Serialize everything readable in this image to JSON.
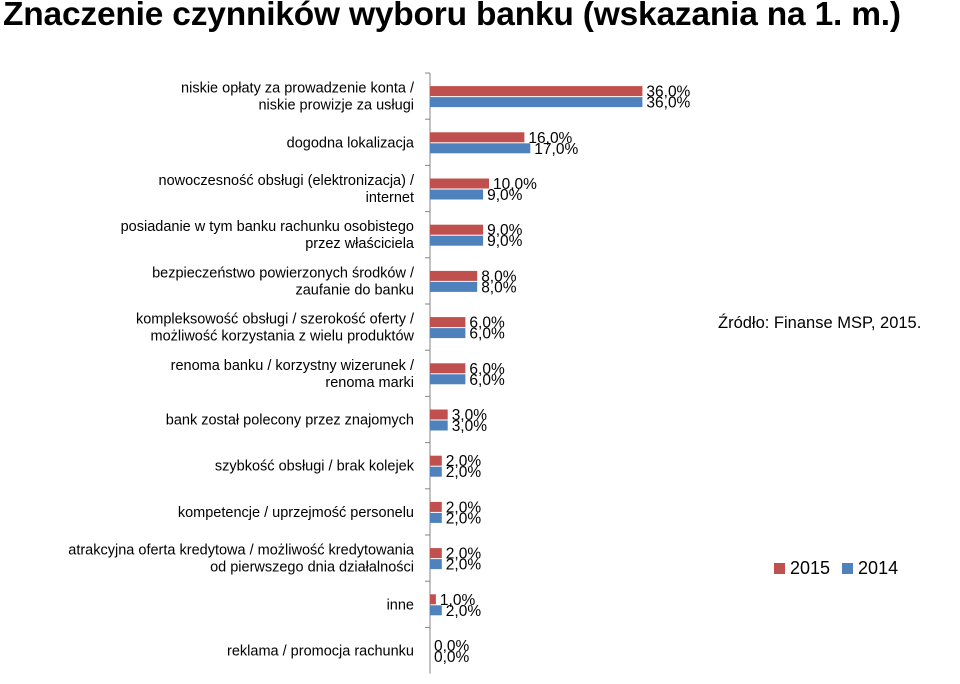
{
  "chart_data": {
    "type": "bar",
    "orientation": "horizontal",
    "title": "Znaczenie czynników wyboru banku (wskazania na 1. m.)",
    "categories": [
      [
        "niskie opłaty za prowadzenie konta /",
        "niskie prowizje za usługi"
      ],
      [
        "dogodna lokalizacja"
      ],
      [
        "nowoczesność obsługi (elektronizacja) /",
        "internet"
      ],
      [
        "posiadanie w tym banku rachunku osobistego",
        "przez właściciela"
      ],
      [
        "bezpieczeństwo powierzonych środków /",
        "zaufanie do banku"
      ],
      [
        "kompleksowość obsługi  / szerokość oferty /",
        "możliwość korzystania z wielu produktów"
      ],
      [
        "renoma banku / korzystny wizerunek /",
        "renoma marki"
      ],
      [
        "bank został polecony przez znajomych"
      ],
      [
        "szybkość obsługi / brak kolejek"
      ],
      [
        "kompetencje / uprzejmość personelu"
      ],
      [
        "atrakcyjna oferta kredytowa / możliwość kredytowania",
        "od pierwszego dnia działalności"
      ],
      [
        "inne"
      ],
      [
        "reklama / promocja rachunku"
      ]
    ],
    "series": [
      {
        "name": "2015",
        "color": "#c0504d",
        "values": [
          36,
          16,
          10,
          9,
          8,
          6,
          6,
          3,
          2,
          2,
          2,
          1,
          0
        ],
        "labels": [
          "36,0%",
          "16,0%",
          "10,0%",
          "9,0%",
          "8,0%",
          "6,0%",
          "6,0%",
          "3,0%",
          "2,0%",
          "2,0%",
          "2,0%",
          "1,0%",
          "0,0%"
        ]
      },
      {
        "name": "2014",
        "color": "#4f81bd",
        "values": [
          36,
          17,
          9,
          9,
          8,
          6,
          6,
          3,
          2,
          2,
          2,
          2,
          0
        ],
        "labels": [
          "36,0%",
          "17,0%",
          "9,0%",
          "9,0%",
          "8,0%",
          "6,0%",
          "6,0%",
          "3,0%",
          "2,0%",
          "2,0%",
          "2,0%",
          "2,0%",
          "0,0%"
        ]
      }
    ],
    "grid": false,
    "legend_position": "right"
  },
  "source_note": "Źródło: Finanse MSP, 2015."
}
